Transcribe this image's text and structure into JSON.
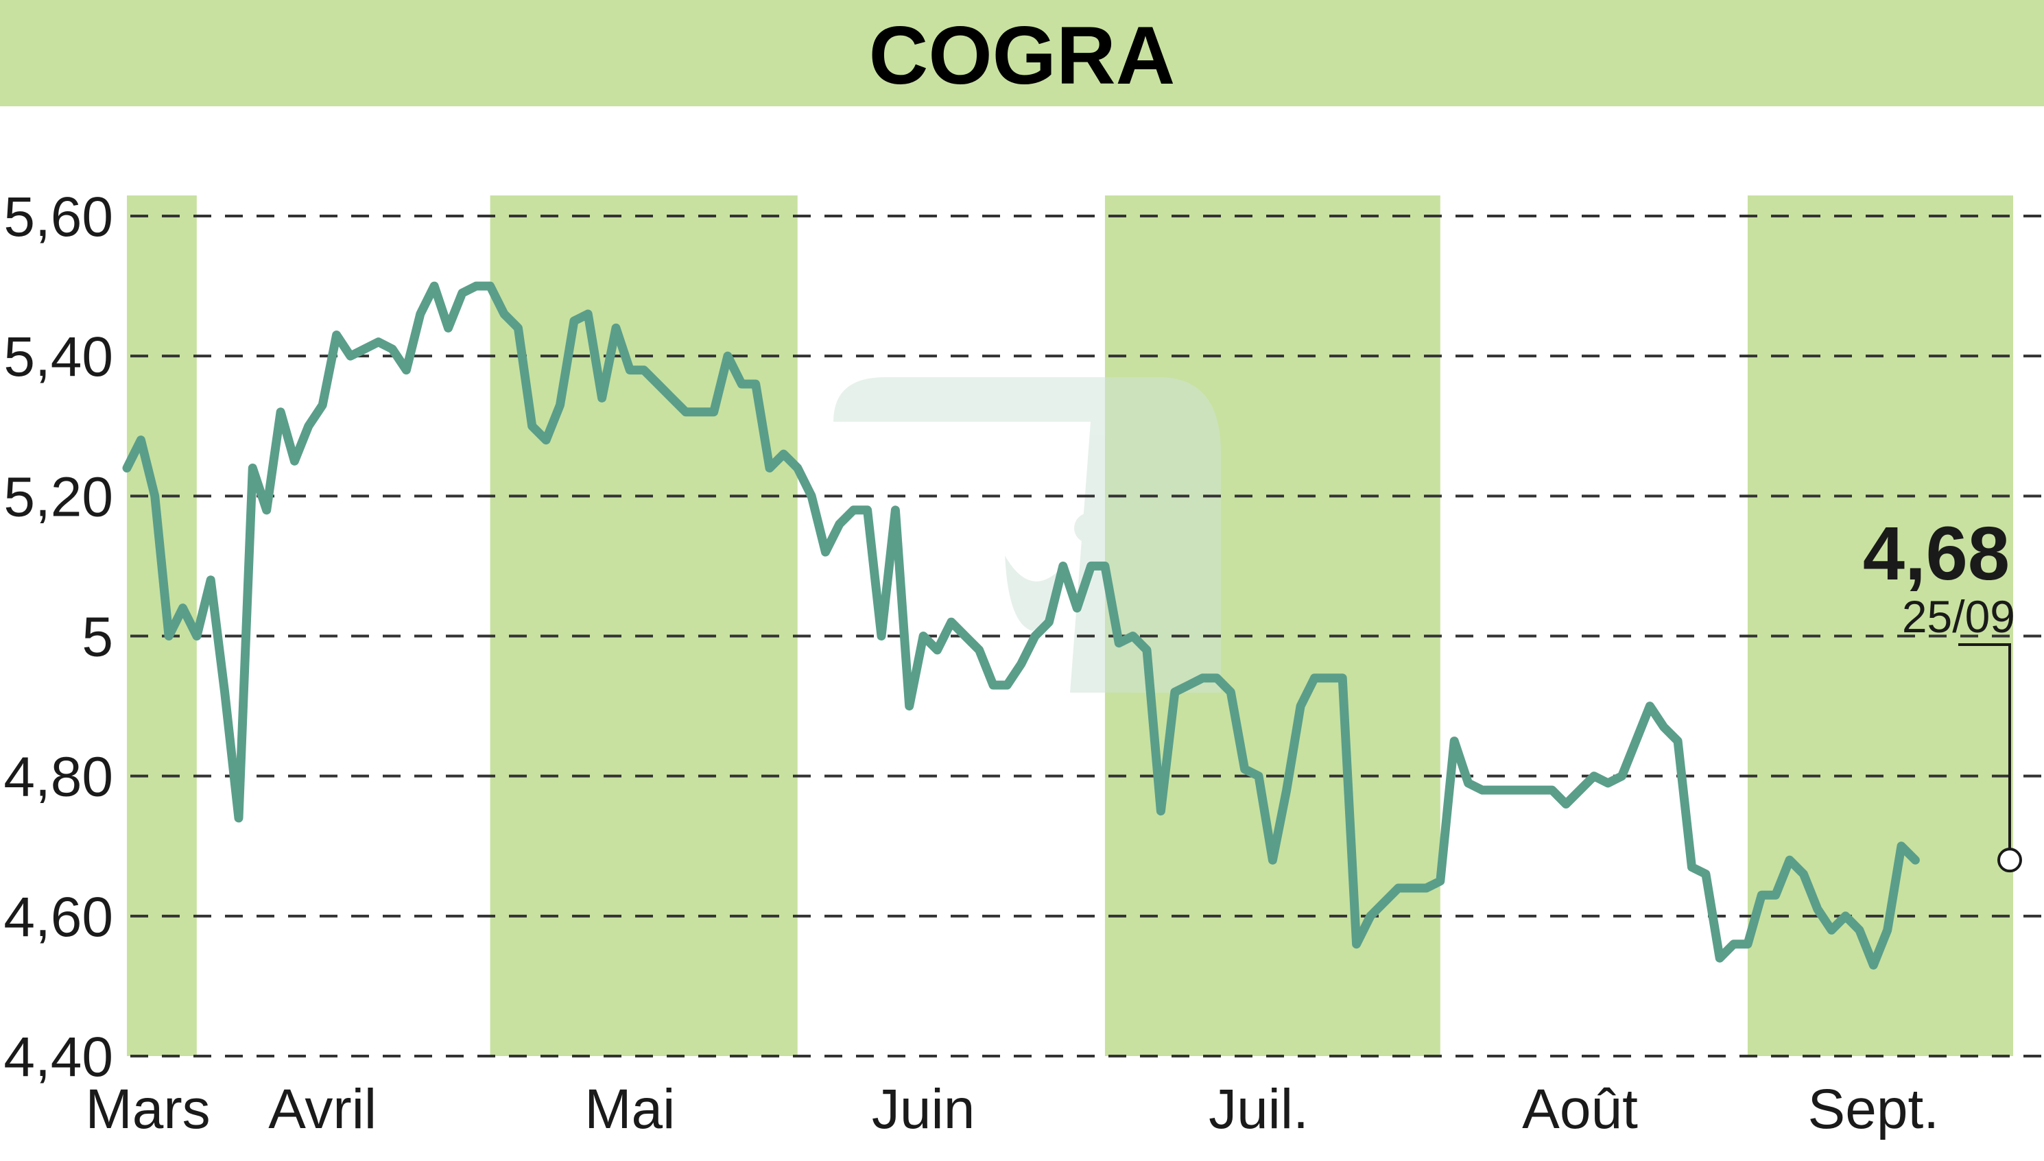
{
  "title": "COGRA",
  "colors": {
    "banner": "#c8e1a0",
    "band": "#c8e1a0",
    "line": "#5a9e8a",
    "grid": "#333333",
    "watermark": "#cfe3d8"
  },
  "watermark_icon": "cogra-logo-watermark-icon",
  "chart_data": {
    "type": "line",
    "title": "COGRA",
    "xlabel": "",
    "ylabel": "",
    "ylim": [
      4.4,
      5.6
    ],
    "y_ticks": [
      5.6,
      5.4,
      5.2,
      5,
      4.8,
      4.6,
      4.4
    ],
    "y_tick_labels": [
      "5,60",
      "5,40",
      "5,20",
      "5",
      "4,80",
      "4,60",
      "4,40"
    ],
    "grid": "horizontal dashed",
    "x_index_range": [
      0,
      135
    ],
    "months": [
      {
        "label": "Mars",
        "center": 1.5
      },
      {
        "label": "Avril",
        "center": 14
      },
      {
        "label": "Mai",
        "center": 36
      },
      {
        "label": "Juin",
        "center": 57
      },
      {
        "label": "Juil.",
        "center": 81
      },
      {
        "label": "Août",
        "center": 104
      },
      {
        "label": "Sept.",
        "center": 125
      }
    ],
    "shaded_month_bands": [
      {
        "month": "Mars",
        "from": 0,
        "to": 5
      },
      {
        "month": "Mai",
        "from": 26,
        "to": 48
      },
      {
        "month": "Juil.",
        "from": 70,
        "to": 94
      },
      {
        "month": "Sept.",
        "from": 116,
        "to": 135
      }
    ],
    "series": [
      {
        "values": [
          5.24,
          5.28,
          5.2,
          5.0,
          5.04,
          5.0,
          5.08,
          4.92,
          4.74,
          5.24,
          5.18,
          5.32,
          5.25,
          5.3,
          5.33,
          5.43,
          5.4,
          5.41,
          5.42,
          5.41,
          5.38,
          5.46,
          5.5,
          5.44,
          5.49,
          5.5,
          5.5,
          5.46,
          5.44,
          5.3,
          5.28,
          5.33,
          5.45,
          5.46,
          5.34,
          5.44,
          5.38,
          5.38,
          5.36,
          5.34,
          5.32,
          5.32,
          5.32,
          5.4,
          5.36,
          5.36,
          5.24,
          5.26,
          5.24,
          5.2,
          5.12,
          5.16,
          5.18,
          5.18,
          5.0,
          5.18,
          4.9,
          5.0,
          4.98,
          5.02,
          5.0,
          4.98,
          4.93,
          4.93,
          4.96,
          5.0,
          5.02,
          5.1,
          5.04,
          5.1,
          5.1,
          4.99,
          5.0,
          4.98,
          4.75,
          4.92,
          4.93,
          4.94,
          4.94,
          4.92,
          4.81,
          4.8,
          4.68,
          4.78,
          4.9,
          4.94,
          4.94,
          4.94,
          4.56,
          4.6,
          4.62,
          4.64,
          4.64,
          4.64,
          4.65,
          4.85,
          4.79,
          4.78,
          4.78,
          4.78,
          4.78,
          4.78,
          4.78,
          4.76,
          4.78,
          4.8,
          4.79,
          4.8,
          4.85,
          4.9,
          4.87,
          4.85,
          4.67,
          4.66,
          4.54,
          4.56,
          4.56,
          4.63,
          4.63,
          4.68,
          4.66,
          4.61,
          4.58,
          4.6,
          4.58,
          4.53,
          4.58,
          4.7,
          4.68
        ]
      }
    ],
    "last_point": {
      "value_label": "4,68",
      "date_label": "25/09",
      "value": 4.68
    }
  }
}
